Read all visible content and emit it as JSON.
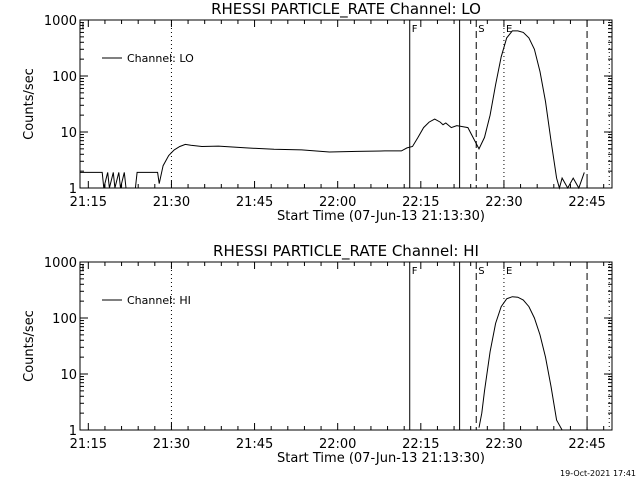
{
  "footer_timestamp": "19-Oct-2021 17:41",
  "chart_data": [
    {
      "type": "line",
      "title": "RHESSI PARTICLE_RATE Channel: LO",
      "xlabel": "Start Time (07-Jun-13 21:13:30)",
      "ylabel": "Counts/sec",
      "yscale": "log",
      "ylim": [
        1,
        1000
      ],
      "xlim_minutes": [
        0,
        96
      ],
      "x_tick_labels": [
        "21:15",
        "21:30",
        "21:45",
        "22:00",
        "22:15",
        "22:30",
        "22:45"
      ],
      "y_tick_labels": [
        "1",
        "10",
        "100",
        "1000"
      ],
      "legend": {
        "label": "Channel: LO",
        "placement": "top-left"
      },
      "markers": [
        {
          "label": "F",
          "time": "22:13",
          "style": "solid"
        },
        {
          "label": "",
          "time": "22:22",
          "style": "solid"
        },
        {
          "label": "S",
          "time": "22:25",
          "style": "dashed"
        },
        {
          "label": "E",
          "time": "22:30",
          "style": "dotted"
        },
        {
          "label": "",
          "time": "21:30",
          "style": "dotted"
        },
        {
          "label": "",
          "time": "22:45",
          "style": "dashed"
        },
        {
          "label": "",
          "time": "22:49",
          "style": "dotted"
        }
      ],
      "series": [
        {
          "name": "Channel: LO",
          "x_minutes": [
            0,
            4,
            4.3,
            5,
            5.3,
            6,
            6.3,
            7,
            7.3,
            8,
            8.3,
            9,
            10,
            10.3,
            14,
            14.3,
            15,
            16,
            17,
            18,
            19,
            20,
            22,
            25,
            30,
            35,
            40,
            45,
            50,
            55,
            58,
            59,
            60,
            61,
            62,
            63,
            64,
            65,
            65.5,
            66,
            67,
            68,
            70,
            72,
            73,
            74,
            75,
            76,
            77,
            78,
            79,
            80,
            81,
            82,
            83,
            84,
            85,
            86,
            86.5,
            87,
            88,
            89,
            90,
            91
          ],
          "values": [
            1.9,
            1.9,
            1,
            1.9,
            1,
            1.9,
            1,
            1.9,
            1,
            1.9,
            1,
            1,
            1,
            1.9,
            1.9,
            1.2,
            2.5,
            3.8,
            4.8,
            5.5,
            6,
            5.8,
            5.5,
            5.6,
            5.2,
            4.9,
            4.8,
            4.4,
            4.5,
            4.6,
            4.6,
            5.2,
            5.5,
            8,
            12,
            15,
            17,
            15,
            13.5,
            14.5,
            12,
            13,
            12,
            5,
            8,
            20,
            70,
            220,
            480,
            640,
            640,
            600,
            480,
            300,
            120,
            35,
            7,
            1.5,
            1,
            1.5,
            1,
            1.5,
            1,
            1.9
          ]
        }
      ]
    },
    {
      "type": "line",
      "title": "RHESSI PARTICLE_RATE Channel: HI",
      "xlabel": "Start Time (07-Jun-13 21:13:30)",
      "ylabel": "Counts/sec",
      "yscale": "log",
      "ylim": [
        1,
        1000
      ],
      "xlim_minutes": [
        0,
        96
      ],
      "x_tick_labels": [
        "21:15",
        "21:30",
        "21:45",
        "22:00",
        "22:15",
        "22:30",
        "22:45"
      ],
      "y_tick_labels": [
        "1",
        "10",
        "100",
        "1000"
      ],
      "legend": {
        "label": "Channel: HI",
        "placement": "top-left"
      },
      "markers": [
        {
          "label": "F",
          "time": "22:13",
          "style": "solid"
        },
        {
          "label": "",
          "time": "22:22",
          "style": "solid"
        },
        {
          "label": "S",
          "time": "22:25",
          "style": "dashed"
        },
        {
          "label": "E",
          "time": "22:30",
          "style": "dotted"
        },
        {
          "label": "",
          "time": "21:30",
          "style": "dotted"
        },
        {
          "label": "",
          "time": "22:45",
          "style": "dashed"
        },
        {
          "label": "",
          "time": "22:49",
          "style": "dotted"
        }
      ],
      "series": [
        {
          "name": "Channel: HI",
          "x_minutes": [
            72,
            72.5,
            73,
            74,
            75,
            76,
            77,
            78,
            79,
            80,
            81,
            82,
            83,
            84,
            85,
            86,
            87
          ],
          "values": [
            1.1,
            2,
            5,
            25,
            80,
            160,
            220,
            240,
            235,
            210,
            160,
            100,
            50,
            20,
            6,
            1.5,
            1
          ]
        }
      ]
    }
  ]
}
